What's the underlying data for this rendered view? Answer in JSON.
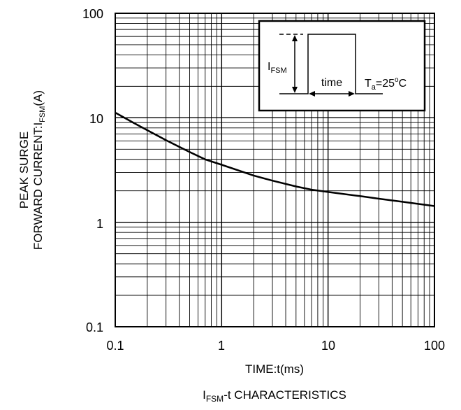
{
  "chart_data": {
    "type": "line",
    "x_scale": "log",
    "y_scale": "log",
    "xlim": [
      0.1,
      100
    ],
    "ylim": [
      0.1,
      100
    ],
    "grid": true,
    "x_ticks": [
      "0.1",
      "1",
      "10",
      "100"
    ],
    "y_ticks": [
      "100",
      "10",
      "1",
      "0.1"
    ],
    "xlabel": "TIME:t(ms)",
    "ylabel": {
      "line1": "PEAK SURGE",
      "line2_prefix": "FORWARD CURRENT:I",
      "line2_sub": "FSM",
      "line2_suffix": "(A)"
    },
    "title": {
      "prefix": "I",
      "sub": "FSM",
      "suffix": "-t CHARACTERISTICS"
    },
    "series": [
      {
        "x": [
          0.1,
          0.15,
          0.2,
          0.3,
          0.5,
          0.7,
          1,
          2,
          3,
          5,
          7,
          10,
          20,
          30,
          50,
          70,
          100
        ],
        "y": [
          11.2,
          8.9,
          7.6,
          6.1,
          4.7,
          4.0,
          3.55,
          2.8,
          2.5,
          2.2,
          2.05,
          1.95,
          1.78,
          1.68,
          1.57,
          1.5,
          1.43
        ]
      }
    ],
    "inset": {
      "ifsm_prefix": "I",
      "ifsm_sub": "FSM",
      "time_label": "time",
      "ta_prefix": "T",
      "ta_sub": "a",
      "ta_value": "=25",
      "ta_sup": "o",
      "ta_unit": "C"
    }
  }
}
